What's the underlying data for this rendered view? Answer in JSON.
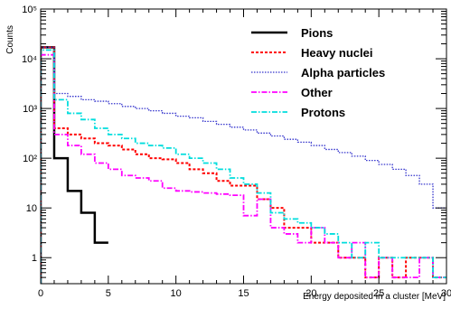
{
  "chart_data": {
    "type": "line",
    "style": "step-histogram",
    "title": "",
    "xlabel": "Energy deposited in a cluster [MeV]",
    "ylabel": "Counts",
    "xlim": [
      0,
      30
    ],
    "ylim": [
      0.3,
      100000
    ],
    "yscale": "log",
    "grid": false,
    "legend_position": "top-right",
    "x_ticks": [
      0,
      5,
      10,
      15,
      20,
      25,
      30
    ],
    "x_tick_labels": [
      "0",
      "5",
      "10",
      "15",
      "20",
      "25",
      "30"
    ],
    "y_ticks": [
      1,
      10,
      100,
      1000,
      10000,
      100000
    ],
    "y_tick_labels": [
      "1",
      "10",
      "10²",
      "10³",
      "10⁴",
      "10⁵"
    ],
    "series": [
      {
        "name": "Pions",
        "color": "#000000",
        "dash": "solid",
        "bins": [
          [
            0,
            1,
            17000
          ],
          [
            1,
            2,
            100
          ],
          [
            2,
            3,
            22
          ],
          [
            3,
            4,
            8
          ],
          [
            4,
            5,
            2
          ]
        ]
      },
      {
        "name": "Heavy nuclei",
        "color": "#ff0000",
        "dash": "dotted",
        "bins": [
          [
            0,
            1,
            17000
          ],
          [
            1,
            2,
            400
          ],
          [
            2,
            3,
            300
          ],
          [
            3,
            4,
            250
          ],
          [
            4,
            5,
            200
          ],
          [
            5,
            6,
            180
          ],
          [
            6,
            7,
            150
          ],
          [
            7,
            8,
            120
          ],
          [
            8,
            9,
            100
          ],
          [
            9,
            10,
            95
          ],
          [
            10,
            11,
            80
          ],
          [
            11,
            12,
            60
          ],
          [
            12,
            13,
            50
          ],
          [
            13,
            14,
            35
          ],
          [
            14,
            15,
            28
          ],
          [
            15,
            16,
            28
          ],
          [
            16,
            17,
            15
          ],
          [
            17,
            18,
            10
          ],
          [
            18,
            19,
            4
          ],
          [
            19,
            20,
            4
          ],
          [
            20,
            21,
            2
          ],
          [
            21,
            22,
            2
          ],
          [
            22,
            23,
            1
          ],
          [
            23,
            24,
            1
          ],
          [
            24,
            25,
            0.4
          ],
          [
            25,
            26,
            1
          ],
          [
            26,
            27,
            0.4
          ],
          [
            27,
            28,
            1
          ],
          [
            28,
            29,
            1
          ],
          [
            29,
            30,
            0.4
          ]
        ]
      },
      {
        "name": "Alpha particles",
        "color": "#3333cc",
        "dash": "fine-dotted",
        "bins": [
          [
            0,
            1,
            17000
          ],
          [
            1,
            2,
            2000
          ],
          [
            2,
            3,
            1750
          ],
          [
            3,
            4,
            1500
          ],
          [
            4,
            5,
            1400
          ],
          [
            5,
            6,
            1250
          ],
          [
            6,
            7,
            1100
          ],
          [
            7,
            8,
            1000
          ],
          [
            8,
            9,
            900
          ],
          [
            9,
            10,
            800
          ],
          [
            10,
            11,
            700
          ],
          [
            11,
            12,
            650
          ],
          [
            12,
            13,
            550
          ],
          [
            13,
            14,
            480
          ],
          [
            14,
            15,
            420
          ],
          [
            15,
            16,
            370
          ],
          [
            16,
            17,
            320
          ],
          [
            17,
            18,
            280
          ],
          [
            18,
            19,
            240
          ],
          [
            19,
            20,
            210
          ],
          [
            20,
            21,
            180
          ],
          [
            21,
            22,
            150
          ],
          [
            22,
            23,
            130
          ],
          [
            23,
            24,
            110
          ],
          [
            24,
            25,
            90
          ],
          [
            25,
            26,
            75
          ],
          [
            26,
            27,
            60
          ],
          [
            27,
            28,
            45
          ],
          [
            28,
            29,
            30
          ],
          [
            29,
            30,
            10
          ]
        ]
      },
      {
        "name": "Other",
        "color": "#ff00ff",
        "dash": "dash-dot",
        "bins": [
          [
            0,
            1,
            12000
          ],
          [
            1,
            2,
            300
          ],
          [
            2,
            3,
            180
          ],
          [
            3,
            4,
            120
          ],
          [
            4,
            5,
            80
          ],
          [
            5,
            6,
            60
          ],
          [
            6,
            7,
            45
          ],
          [
            7,
            8,
            40
          ],
          [
            8,
            9,
            35
          ],
          [
            9,
            10,
            25
          ],
          [
            10,
            11,
            22
          ],
          [
            11,
            12,
            21
          ],
          [
            12,
            13,
            20
          ],
          [
            13,
            14,
            19
          ],
          [
            14,
            15,
            18
          ],
          [
            15,
            16,
            7
          ],
          [
            16,
            17,
            15
          ],
          [
            17,
            18,
            4
          ],
          [
            18,
            19,
            3
          ],
          [
            19,
            20,
            2
          ],
          [
            20,
            21,
            4
          ],
          [
            21,
            22,
            2
          ],
          [
            22,
            23,
            1
          ],
          [
            23,
            24,
            2
          ],
          [
            24,
            25,
            0.4
          ],
          [
            25,
            26,
            1
          ],
          [
            26,
            27,
            0.4
          ],
          [
            27,
            28,
            0.4
          ],
          [
            28,
            29,
            1
          ],
          [
            29,
            30,
            0.4
          ]
        ]
      },
      {
        "name": "Protons",
        "color": "#00dddd",
        "dash": "dash-dot",
        "bins": [
          [
            0,
            1,
            15000
          ],
          [
            1,
            2,
            1500
          ],
          [
            2,
            3,
            800
          ],
          [
            3,
            4,
            600
          ],
          [
            4,
            5,
            400
          ],
          [
            5,
            6,
            300
          ],
          [
            6,
            7,
            250
          ],
          [
            7,
            8,
            200
          ],
          [
            8,
            9,
            180
          ],
          [
            9,
            10,
            160
          ],
          [
            10,
            11,
            120
          ],
          [
            11,
            12,
            100
          ],
          [
            12,
            13,
            80
          ],
          [
            13,
            14,
            60
          ],
          [
            14,
            15,
            40
          ],
          [
            15,
            16,
            30
          ],
          [
            16,
            17,
            20
          ],
          [
            17,
            18,
            8
          ],
          [
            18,
            19,
            6
          ],
          [
            19,
            20,
            5
          ],
          [
            20,
            21,
            4
          ],
          [
            21,
            22,
            3
          ],
          [
            22,
            23,
            2
          ],
          [
            23,
            24,
            1
          ],
          [
            24,
            25,
            2
          ],
          [
            25,
            26,
            1
          ],
          [
            26,
            27,
            1
          ],
          [
            27,
            28,
            1
          ],
          [
            28,
            29,
            1
          ],
          [
            29,
            30,
            0.4
          ]
        ]
      }
    ]
  }
}
